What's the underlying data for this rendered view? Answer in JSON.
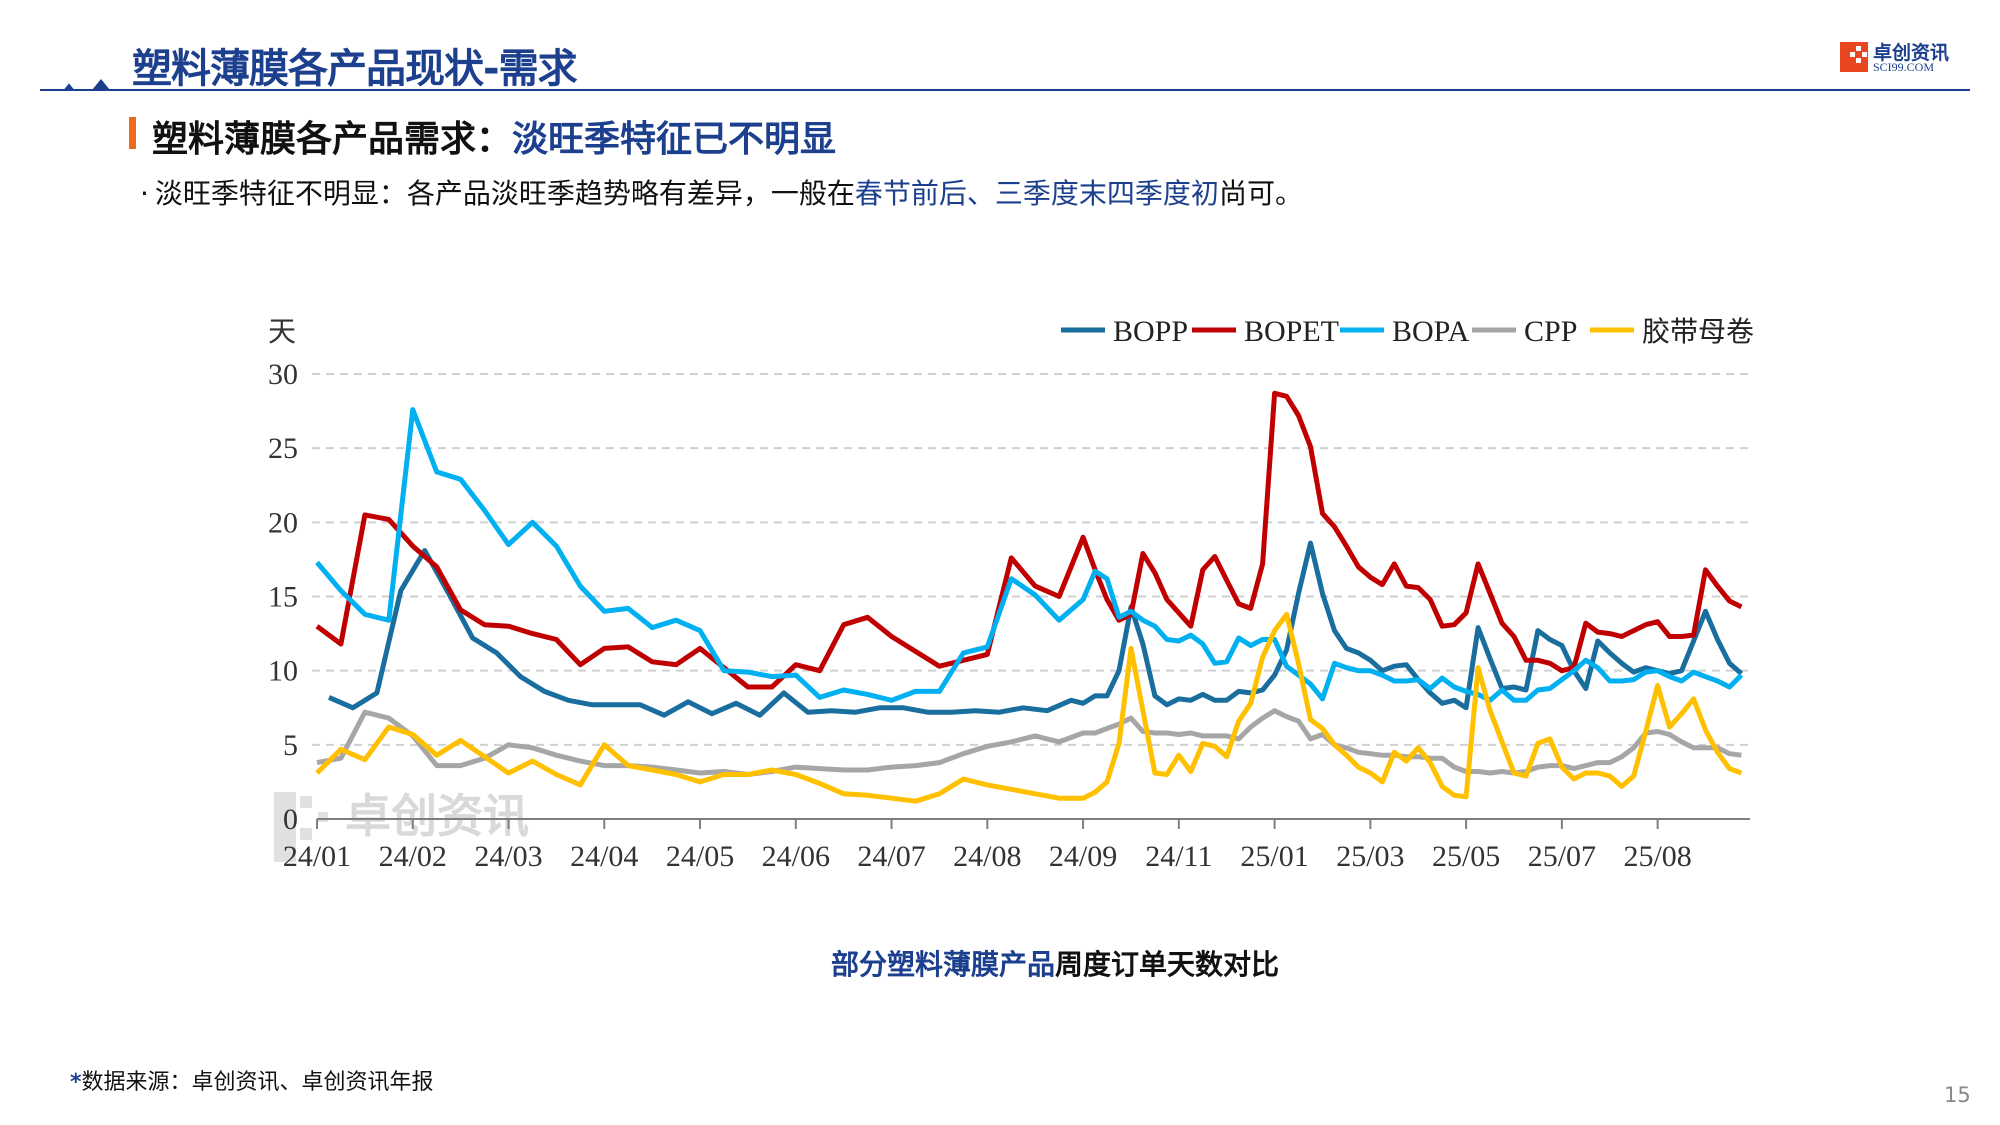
{
  "header": {
    "title": "塑料薄膜各产品现状-需求",
    "logo_cn": "卓创资讯",
    "logo_en": "SCI99.COM"
  },
  "section": {
    "subtitle_prefix": "塑料薄膜各产品需求：",
    "subtitle_highlight": "淡旺季特征已不明显",
    "bullet_marker": "·",
    "bullet_text_1": "淡旺季特征不明显：各产品淡旺季趋势略有差异，一般在",
    "bullet_highlight": "春节前后、三季度末四季度初",
    "bullet_text_2": "尚可。"
  },
  "caption": {
    "highlight": "部分塑料薄膜产品",
    "rest": "周度订单天数对比"
  },
  "footnote": {
    "star": "*",
    "text": "数据来源：卓创资讯、卓创资讯年报"
  },
  "page_number": "15",
  "watermark": "卓创资讯",
  "chart_data": {
    "type": "line",
    "ylabel": "天",
    "ylim": [
      0,
      30
    ],
    "yticks": [
      0,
      5,
      10,
      15,
      20,
      25,
      30
    ],
    "grid": "horizontal dashed",
    "legend_position": "top-right",
    "x_ticks": [
      {
        "label": "24/01",
        "index": 0
      },
      {
        "label": "24/02",
        "index": 8
      },
      {
        "label": "24/03",
        "index": 16
      },
      {
        "label": "24/04",
        "index": 24
      },
      {
        "label": "24/05",
        "index": 32
      },
      {
        "label": "24/06",
        "index": 40
      },
      {
        "label": "24/07",
        "index": 48
      },
      {
        "label": "24/08",
        "index": 56
      },
      {
        "label": "24/09",
        "index": 64
      },
      {
        "label": "24/11",
        "index": 72
      },
      {
        "label": "25/01",
        "index": 80
      },
      {
        "label": "25/03",
        "index": 88
      },
      {
        "label": "25/05",
        "index": 96
      },
      {
        "label": "25/07",
        "index": 104
      },
      {
        "label": "25/08",
        "index": 112
      }
    ],
    "x_count": 120,
    "series": [
      {
        "name": "BOPP",
        "color": "#1a6e9e",
        "early": {
          "start": 1,
          "step": 2,
          "values": [
            8.2,
            7.5,
            8.5,
            15.4,
            18.1,
            15.2,
            12.2,
            11.2,
            9.6,
            8.6,
            8.0,
            7.7,
            7.7,
            7.7,
            7.0,
            7.9,
            7.1,
            7.8,
            7.0,
            8.5,
            7.2,
            7.3,
            7.2,
            7.5,
            7.5,
            7.2,
            7.2,
            7.3,
            7.2,
            7.5,
            7.3,
            8.0
          ]
        },
        "weekly": {
          "start": 64,
          "values": [
            7.8,
            8.3,
            8.3,
            10.0,
            14.3,
            11.8,
            8.3,
            7.7,
            8.1,
            8.0,
            8.4,
            8.0,
            8.0,
            8.6,
            8.5,
            8.7,
            9.7,
            11.4,
            15.2,
            18.6,
            15.2,
            12.7,
            11.5,
            11.2,
            10.7,
            10.0,
            10.3,
            10.4,
            9.4,
            8.5,
            7.8,
            8.0,
            7.5,
            12.9,
            10.8,
            8.8,
            8.9,
            8.7,
            12.7,
            12.1,
            11.7,
            10.0,
            8.8,
            12.0,
            11.2,
            10.5,
            9.9,
            10.2,
            10.0,
            9.8,
            10.0,
            12.0,
            14.0,
            12.1,
            10.5,
            9.8
          ]
        }
      },
      {
        "name": "BOPET",
        "color": "#c00000",
        "early": {
          "start": 0,
          "step": 2,
          "values": [
            13.0,
            11.8,
            20.5,
            20.2,
            18.4,
            17.0,
            14.1,
            13.1,
            13.0,
            12.5,
            12.1,
            10.4,
            11.5,
            11.6,
            10.6,
            10.4,
            11.5,
            10.2,
            8.9,
            8.9,
            10.4,
            10.0,
            13.1,
            13.6,
            12.3,
            11.3,
            10.3,
            10.7,
            11.1,
            17.6,
            15.7,
            15.0,
            19.0
          ]
        },
        "weekly": {
          "start": 65,
          "values": [
            16.8,
            14.8,
            13.4,
            13.8,
            17.9,
            16.6,
            14.8,
            13.9,
            13.0,
            16.8,
            17.7,
            16.1,
            14.5,
            14.2,
            17.2,
            28.7,
            28.5,
            27.2,
            25.1,
            20.6,
            19.7,
            18.4,
            17.0,
            16.3,
            15.8,
            17.2,
            15.7,
            15.6,
            14.8,
            13.0,
            13.1,
            13.9,
            17.2,
            15.2,
            13.2,
            12.3,
            10.7,
            10.7,
            10.5,
            10.0,
            10.2,
            13.2,
            12.6,
            12.5,
            12.3,
            12.7,
            13.1,
            13.3,
            12.3,
            12.3,
            12.4,
            16.8,
            15.7,
            14.7,
            14.3
          ]
        }
      },
      {
        "name": "BOPA",
        "color": "#00b0f0",
        "early": {
          "start": 0,
          "step": 2,
          "values": [
            17.3,
            15.4,
            13.8,
            13.4,
            27.6,
            23.4,
            22.9,
            20.8,
            18.5,
            20.0,
            18.4,
            15.7,
            14.0,
            14.2,
            12.9,
            13.4,
            12.7,
            10.0,
            9.9,
            9.6,
            9.7,
            8.2,
            8.7,
            8.4,
            8.0,
            8.6,
            8.6,
            11.2,
            11.6,
            16.2,
            15.1,
            13.4,
            14.8
          ]
        },
        "weekly": {
          "start": 65,
          "values": [
            16.7,
            16.2,
            13.6,
            14.0,
            13.4,
            13.0,
            12.1,
            12.0,
            12.4,
            11.8,
            10.5,
            10.6,
            12.2,
            11.7,
            12.1,
            12.1,
            10.3,
            9.7,
            9.1,
            8.1,
            10.5,
            10.2,
            10.0,
            10.0,
            9.7,
            9.3,
            9.3,
            9.4,
            8.8,
            9.5,
            8.9,
            8.6,
            8.4,
            8.0,
            8.7,
            8.0,
            8.0,
            8.7,
            8.8,
            9.4,
            10.0,
            10.7,
            10.2,
            9.3,
            9.3,
            9.4,
            9.9,
            10.0,
            9.6,
            9.3,
            9.9,
            9.6,
            9.3,
            8.9,
            9.7
          ]
        }
      },
      {
        "name": "CPP",
        "color": "#a6a6a6",
        "early": {
          "start": 0,
          "step": 2,
          "values": [
            3.8,
            4.1,
            7.2,
            6.8,
            5.6,
            3.6,
            3.6,
            4.1,
            5.0,
            4.8,
            4.3,
            3.9,
            3.6,
            3.6,
            3.5,
            3.3,
            3.1,
            3.2,
            3.0,
            3.2,
            3.5,
            3.4,
            3.3,
            3.3,
            3.5,
            3.6,
            3.8,
            4.4,
            4.9,
            5.2,
            5.6,
            5.2,
            5.8
          ]
        },
        "weekly": {
          "start": 65,
          "values": [
            5.8,
            6.1,
            6.4,
            6.8,
            5.9,
            5.8,
            5.8,
            5.7,
            5.8,
            5.6,
            5.6,
            5.6,
            5.4,
            6.2,
            6.8,
            7.3,
            6.9,
            6.6,
            5.4,
            5.7,
            5.0,
            4.8,
            4.5,
            4.4,
            4.3,
            4.3,
            4.2,
            4.2,
            4.1,
            4.1,
            3.5,
            3.2,
            3.2,
            3.1,
            3.2,
            3.1,
            3.2,
            3.5,
            3.6,
            3.6,
            3.4,
            3.6,
            3.8,
            3.8,
            4.2,
            4.8,
            5.8,
            5.9,
            5.7,
            5.2,
            4.8,
            4.8,
            4.8,
            4.4,
            4.3
          ]
        }
      },
      {
        "name": "胶带母卷",
        "color": "#ffc000",
        "early": {
          "start": 0,
          "step": 2,
          "values": [
            3.1,
            4.7,
            4.0,
            6.2,
            5.7,
            4.3,
            5.3,
            4.2,
            3.1,
            3.9,
            3.0,
            2.3,
            5.0,
            3.6,
            3.3,
            3.0,
            2.5,
            3.0,
            3.0,
            3.3,
            3.0,
            2.4,
            1.7,
            1.6,
            1.4,
            1.2,
            1.7,
            2.7,
            2.3,
            2.0,
            1.7,
            1.4,
            1.4
          ]
        },
        "weekly": {
          "start": 65,
          "values": [
            1.8,
            2.5,
            5.1,
            11.5,
            7.3,
            3.1,
            3.0,
            4.3,
            3.2,
            5.1,
            4.9,
            4.2,
            6.6,
            7.8,
            10.9,
            12.7,
            13.8,
            10.5,
            6.7,
            6.1,
            5.0,
            4.3,
            3.5,
            3.1,
            2.5,
            4.5,
            3.9,
            4.8,
            3.8,
            2.2,
            1.6,
            1.5,
            10.2,
            7.3,
            5.2,
            3.1,
            2.9,
            5.1,
            5.4,
            3.5,
            2.7,
            3.1,
            3.1,
            2.9,
            2.2,
            2.9,
            5.9,
            9.0,
            6.2,
            7.1,
            8.1,
            6.0,
            4.5,
            3.4,
            3.1
          ]
        }
      }
    ]
  }
}
